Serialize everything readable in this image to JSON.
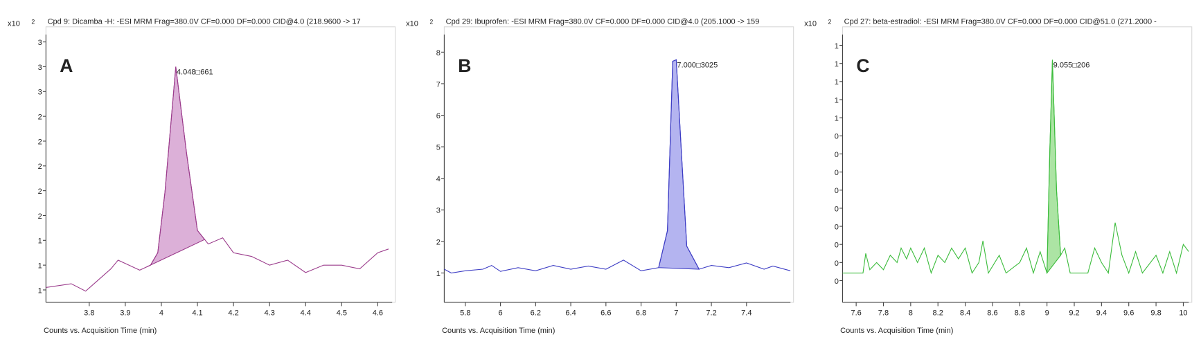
{
  "chart_data": [
    {
      "type": "line",
      "panel_label": "A",
      "title": "Cpd 9: Dicamba -H: -ESI MRM Frag=380.0V CF=0.000 DF=0.000 CID@4.0 (218.9600 -> 17",
      "y_scale_base": "x10",
      "y_scale_exponent": "2",
      "x_label": "Counts vs. Acquisition Time (min)",
      "peak_label": "4.048□661",
      "color": "#9b3c8c",
      "fill_color": "#dcb0d8",
      "x": [
        3.68,
        3.75,
        3.79,
        3.86,
        3.88,
        3.94,
        3.97,
        3.99,
        4.01,
        4.04,
        4.07,
        4.1,
        4.13,
        4.17,
        4.2,
        4.25,
        4.3,
        4.35,
        4.4,
        4.45,
        4.5,
        4.55,
        4.6,
        4.63
      ],
      "values": [
        1.42,
        1.45,
        1.39,
        1.57,
        1.64,
        1.56,
        1.6,
        1.7,
        2.19,
        3.2,
        2.5,
        1.88,
        1.77,
        1.82,
        1.7,
        1.67,
        1.6,
        1.64,
        1.54,
        1.6,
        1.6,
        1.57,
        1.7,
        1.73
      ],
      "peak": {
        "start": 3.96,
        "end": 4.12
      },
      "xlim": [
        3.68,
        4.64
      ],
      "xticks": [
        3.8,
        3.9,
        4,
        4.1,
        4.2,
        4.3,
        4.4,
        4.5,
        4.6
      ],
      "ylim": [
        1.3,
        3.46
      ],
      "yticks": [
        {
          "value": 1.4,
          "label": "1"
        },
        {
          "value": 1.6,
          "label": "1"
        },
        {
          "value": 1.8,
          "label": "1"
        },
        {
          "value": 2.0,
          "label": "2"
        },
        {
          "value": 2.2,
          "label": "2"
        },
        {
          "value": 2.4,
          "label": "2"
        },
        {
          "value": 2.6,
          "label": "2"
        },
        {
          "value": 2.8,
          "label": "2"
        },
        {
          "value": 3.0,
          "label": "3"
        },
        {
          "value": 3.2,
          "label": "3"
        },
        {
          "value": 3.4,
          "label": "3"
        }
      ]
    },
    {
      "type": "line",
      "panel_label": "B",
      "title": "Cpd 29: Ibuprofen: -ESI MRM Frag=380.0V CF=0.000 DF=0.000 CID@4.0 (205.1000 -> 159",
      "y_scale_base": "x10",
      "y_scale_exponent": "2",
      "x_label": "Counts vs. Acquisition Time (min)",
      "peak_label": "7.000□3025",
      "color": "#3c3cc4",
      "fill_color": "#b4b4f0",
      "x": [
        5.68,
        5.72,
        5.8,
        5.9,
        5.95,
        6.0,
        6.1,
        6.2,
        6.3,
        6.4,
        6.5,
        6.6,
        6.7,
        6.8,
        6.9,
        6.95,
        6.98,
        7.0,
        7.03,
        7.06,
        7.13,
        7.2,
        7.3,
        7.4,
        7.5,
        7.55,
        7.65
      ],
      "values": [
        1.12,
        1.0,
        1.07,
        1.12,
        1.24,
        1.05,
        1.17,
        1.07,
        1.24,
        1.12,
        1.22,
        1.12,
        1.41,
        1.07,
        1.17,
        2.34,
        7.71,
        7.76,
        4.78,
        1.85,
        1.12,
        1.24,
        1.17,
        1.32,
        1.12,
        1.22,
        1.07
      ],
      "peak": {
        "start": 6.9,
        "end": 7.13
      },
      "xlim": [
        5.68,
        7.65
      ],
      "xticks": [
        5.8,
        6,
        6.2,
        6.4,
        6.6,
        6.8,
        7,
        7.2,
        7.4
      ],
      "ylim": [
        0.07,
        8.56
      ],
      "yticks": [
        1,
        2,
        3,
        4,
        5,
        6,
        7,
        8
      ]
    },
    {
      "type": "line",
      "panel_label": "C",
      "title": "Cpd 27: beta-estradiol: -ESI MRM Frag=380.0V CF=0.000 DF=0.000 CID@51.0 (271.2000 -",
      "y_scale_base": "x10",
      "y_scale_exponent": "2",
      "x_label": "Counts vs. Acquisition Time (min)",
      "peak_label": "9.055□206",
      "color": "#3cbc3c",
      "fill_color": "#ace4a4",
      "x": [
        7.5,
        7.65,
        7.67,
        7.7,
        7.75,
        7.8,
        7.85,
        7.9,
        7.93,
        7.97,
        8.0,
        8.05,
        8.1,
        8.15,
        8.2,
        8.25,
        8.3,
        8.35,
        8.4,
        8.45,
        8.5,
        8.53,
        8.57,
        8.65,
        8.7,
        8.8,
        8.85,
        8.9,
        8.95,
        9.0,
        9.02,
        9.04,
        9.07,
        9.1,
        9.13,
        9.17,
        9.3,
        9.35,
        9.4,
        9.45,
        9.5,
        9.55,
        9.6,
        9.65,
        9.7,
        9.8,
        9.85,
        9.9,
        9.95,
        10.0,
        10.04
      ],
      "values": [
        0.571,
        0.571,
        0.625,
        0.58,
        0.6,
        0.58,
        0.62,
        0.6,
        0.64,
        0.61,
        0.64,
        0.6,
        0.64,
        0.571,
        0.62,
        0.6,
        0.64,
        0.61,
        0.64,
        0.571,
        0.6,
        0.66,
        0.571,
        0.62,
        0.571,
        0.6,
        0.64,
        0.571,
        0.63,
        0.571,
        0.9,
        1.16,
        0.8,
        0.62,
        0.64,
        0.571,
        0.571,
        0.64,
        0.6,
        0.571,
        0.71,
        0.62,
        0.571,
        0.63,
        0.571,
        0.62,
        0.571,
        0.63,
        0.571,
        0.65,
        0.63
      ],
      "peak": {
        "start": 9.0,
        "end": 9.1
      },
      "xlim": [
        7.5,
        10.04
      ],
      "xticks": [
        7.6,
        7.8,
        8,
        8.2,
        8.4,
        8.6,
        8.8,
        9,
        9.2,
        9.4,
        9.6,
        9.8,
        10
      ],
      "ylim": [
        0.49,
        1.23
      ],
      "yticks": [
        {
          "value": 0.55,
          "label": "0"
        },
        {
          "value": 0.6,
          "label": "0"
        },
        {
          "value": 0.65,
          "label": "0"
        },
        {
          "value": 0.7,
          "label": "0"
        },
        {
          "value": 0.75,
          "label": "0"
        },
        {
          "value": 0.8,
          "label": "0"
        },
        {
          "value": 0.85,
          "label": "0"
        },
        {
          "value": 0.9,
          "label": "0"
        },
        {
          "value": 0.95,
          "label": "0"
        },
        {
          "value": 1.0,
          "label": "1"
        },
        {
          "value": 1.05,
          "label": "1"
        },
        {
          "value": 1.1,
          "label": "1"
        },
        {
          "value": 1.15,
          "label": "1"
        },
        {
          "value": 1.2,
          "label": "1"
        }
      ]
    }
  ]
}
